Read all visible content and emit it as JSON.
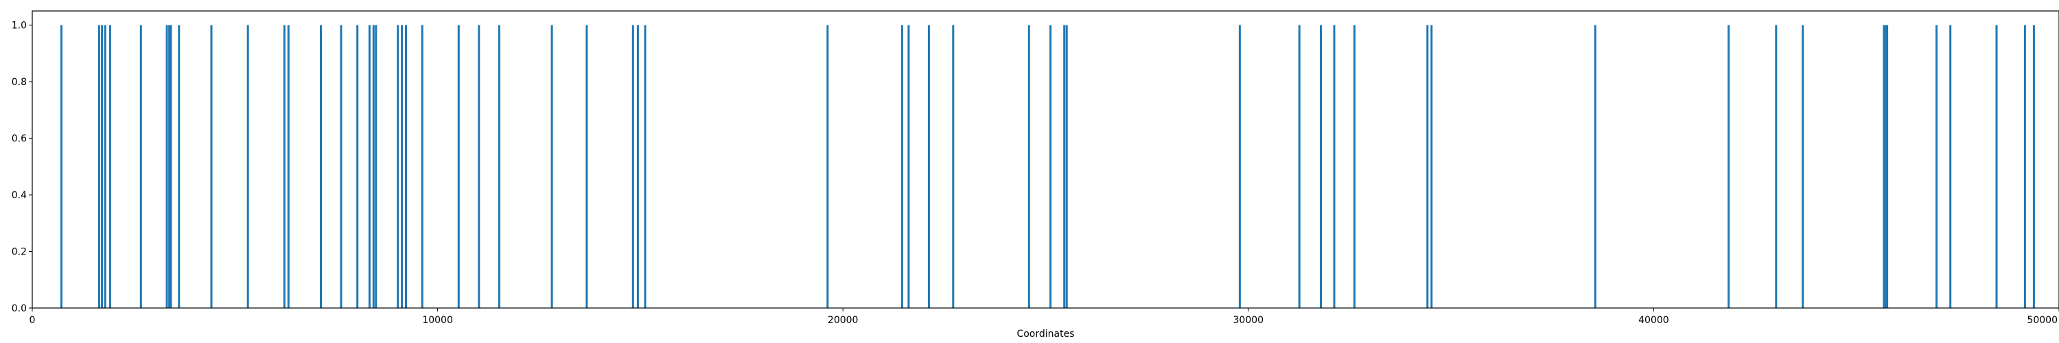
{
  "chart_data": {
    "type": "bar",
    "title": "",
    "xlabel": "Coordinates",
    "ylabel": "",
    "xlim": [
      0,
      50000
    ],
    "ylim": [
      0.0,
      1.05
    ],
    "xticks": [
      0,
      10000,
      20000,
      30000,
      40000,
      50000
    ],
    "xtick_labels": [
      "0",
      "10000",
      "20000",
      "30000",
      "40000",
      "50000"
    ],
    "yticks": [
      0.0,
      0.2,
      0.4,
      0.6,
      0.8,
      1.0
    ],
    "ytick_labels": [
      "0.0",
      "0.2",
      "0.4",
      "0.6",
      "0.8",
      "1.0"
    ],
    "grid": false,
    "bar_color": "#1f77b4",
    "x": [
      720,
      1650,
      1720,
      1800,
      1920,
      2680,
      3320,
      3380,
      3420,
      3620,
      4420,
      5320,
      6220,
      6320,
      7120,
      7620,
      8020,
      8320,
      8420,
      8480,
      9020,
      9120,
      9220,
      9620,
      10520,
      11020,
      11520,
      12820,
      13680,
      14820,
      14940,
      15120,
      19620,
      21460,
      21620,
      22120,
      22720,
      24590,
      25120,
      25460,
      25520,
      29790,
      31260,
      31790,
      32120,
      32620,
      34420,
      34520,
      38560,
      41850,
      43020,
      43680,
      45680,
      45730,
      45760,
      46980,
      47320,
      48460,
      49160,
      49380
    ],
    "values": [
      1,
      1,
      1,
      1,
      1,
      1,
      1,
      1,
      1,
      1,
      1,
      1,
      1,
      1,
      1,
      1,
      1,
      1,
      1,
      1,
      1,
      1,
      1,
      1,
      1,
      1,
      1,
      1,
      1,
      1,
      1,
      1,
      1,
      1,
      1,
      1,
      1,
      1,
      1,
      1,
      1,
      1,
      1,
      1,
      1,
      1,
      1,
      1,
      1,
      1,
      1,
      1,
      1,
      1,
      1,
      1,
      1,
      1,
      1,
      1
    ]
  }
}
